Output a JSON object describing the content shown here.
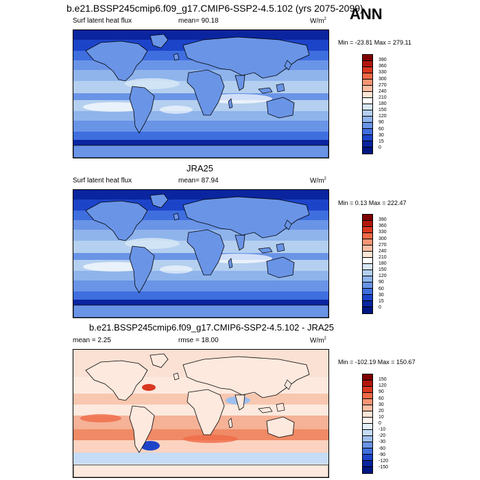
{
  "header": {
    "title": "b.e21.BSSP245cmip6.f09_g17.CMIP6-SSP2-4.5.102 (yrs 2075-2099)",
    "season": "ANN"
  },
  "panels": [
    {
      "center_title": "",
      "left_label": "Surf latent heat flux",
      "mean_label": "mean=  90.18",
      "units": "W/m",
      "units_sup": "2",
      "minmax": "Min = -23.81 Max = 279.11",
      "levels": [
        "390",
        "360",
        "330",
        "300",
        "270",
        "240",
        "210",
        "180",
        "150",
        "120",
        "90",
        "60",
        "30",
        "15",
        "0"
      ],
      "colors": [
        "#7f0000",
        "#b2180b",
        "#d9381f",
        "#ef6a47",
        "#f79575",
        "#fbbea3",
        "#fde5d6",
        "#ffffff",
        "#d8e8f6",
        "#b4cfef",
        "#8fb4ec",
        "#6a94e6",
        "#3f6edf",
        "#1c44c9",
        "#0a259f",
        "#001681"
      ],
      "map_base": "#2c58d6"
    },
    {
      "center_title": "JRA25",
      "left_label": "Surf latent heat flux",
      "mean_label": "mean=  87.94",
      "units": "W/m",
      "units_sup": "2",
      "minmax": "Min =   0.13 Max = 222.47",
      "levels": [
        "390",
        "360",
        "330",
        "300",
        "270",
        "240",
        "210",
        "180",
        "150",
        "120",
        "90",
        "60",
        "30",
        "15",
        "0"
      ],
      "colors": [
        "#7f0000",
        "#b2180b",
        "#d9381f",
        "#ef6a47",
        "#f79575",
        "#fbbea3",
        "#fde5d6",
        "#ffffff",
        "#d8e8f6",
        "#b4cfef",
        "#8fb4ec",
        "#6a94e6",
        "#3f6edf",
        "#1c44c9",
        "#0a259f",
        "#001681"
      ],
      "map_base": "#2c58d6"
    },
    {
      "center_title": "b.e21.BSSP245cmip6.f09_g17.CMIP6-SSP2-4.5.102 - JRA25",
      "left_label": "mean =   2.25",
      "mean_label": "rmse =  18.00",
      "units": "W/m",
      "units_sup": "2",
      "minmax": "Min = -102.19 Max = 150.67",
      "levels": [
        "150",
        "120",
        "90",
        "60",
        "30",
        "20",
        "10",
        "0",
        "-10",
        "-20",
        "-30",
        "-60",
        "-90",
        "-120",
        "-150"
      ],
      "colors": [
        "#7f0000",
        "#b2180b",
        "#d9381f",
        "#ef6a47",
        "#f79575",
        "#fbbea3",
        "#fde5d6",
        "#fff5ef",
        "#e6f0fa",
        "#c6dbf5",
        "#9fc0ef",
        "#6a94e6",
        "#3f6edf",
        "#1c44c9",
        "#0a259f",
        "#001681"
      ],
      "map_base": "#fde8dd"
    }
  ]
}
